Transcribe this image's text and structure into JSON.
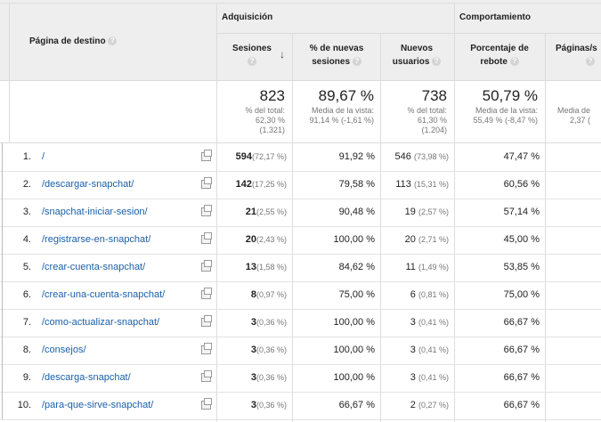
{
  "header": {
    "landing_page_label": "Página de destino",
    "group_acquisition": "Adquisición",
    "group_behavior": "Comportamiento",
    "columns": {
      "sessions": "Sesiones",
      "new_sessions_pct": "% de nuevas sesiones",
      "new_users": "Nuevos usuarios",
      "bounce_rate": "Porcentaje de rebote",
      "pages_session": "Páginas/s"
    }
  },
  "totals": {
    "sessions": {
      "main": "823",
      "line1": "% del total:",
      "line2": "62,30 %",
      "line3": "(1.321)"
    },
    "new_sessions_pct": {
      "main": "89,67 %",
      "line1": "Media de la vista:",
      "line2": "91,14 % (-1,61 %)"
    },
    "new_users": {
      "main": "738",
      "line1": "% del total:",
      "line2": "61,30 %",
      "line3": "(1.204)"
    },
    "bounce_rate": {
      "main": "50,79 %",
      "line1": "Media de la vista:",
      "line2": "55,49 % (-8,47 %)"
    },
    "pages_session": {
      "line1": "Media de",
      "line2": "2,37 ("
    }
  },
  "rows": [
    {
      "rank": "1.",
      "page": "/",
      "sessions": "594",
      "sessions_pct": "(72,17 %)",
      "new_sessions": "91,92 %",
      "new_users": "546",
      "new_users_pct": "(73,98 %)",
      "bounce": "47,47 %"
    },
    {
      "rank": "2.",
      "page": "/descargar-snapchat/",
      "sessions": "142",
      "sessions_pct": "(17,25 %)",
      "new_sessions": "79,58 %",
      "new_users": "113",
      "new_users_pct": "(15,31 %)",
      "bounce": "60,56 %"
    },
    {
      "rank": "3.",
      "page": "/snapchat-iniciar-sesion/",
      "sessions": "21",
      "sessions_pct": "(2,55 %)",
      "new_sessions": "90,48 %",
      "new_users": "19",
      "new_users_pct": "(2,57 %)",
      "bounce": "57,14 %"
    },
    {
      "rank": "4.",
      "page": "/registrarse-en-snapchat/",
      "sessions": "20",
      "sessions_pct": "(2,43 %)",
      "new_sessions": "100,00 %",
      "new_users": "20",
      "new_users_pct": "(2,71 %)",
      "bounce": "45,00 %"
    },
    {
      "rank": "5.",
      "page": "/crear-cuenta-snapchat/",
      "sessions": "13",
      "sessions_pct": "(1,58 %)",
      "new_sessions": "84,62 %",
      "new_users": "11",
      "new_users_pct": "(1,49 %)",
      "bounce": "53,85 %"
    },
    {
      "rank": "6.",
      "page": "/crear-una-cuenta-snapchat/",
      "sessions": "8",
      "sessions_pct": "(0,97 %)",
      "new_sessions": "75,00 %",
      "new_users": "6",
      "new_users_pct": "(0,81 %)",
      "bounce": "75,00 %"
    },
    {
      "rank": "7.",
      "page": "/como-actualizar-snapchat/",
      "sessions": "3",
      "sessions_pct": "(0,36 %)",
      "new_sessions": "100,00 %",
      "new_users": "3",
      "new_users_pct": "(0,41 %)",
      "bounce": "66,67 %"
    },
    {
      "rank": "8.",
      "page": "/consejos/",
      "sessions": "3",
      "sessions_pct": "(0,36 %)",
      "new_sessions": "100,00 %",
      "new_users": "3",
      "new_users_pct": "(0,41 %)",
      "bounce": "66,67 %"
    },
    {
      "rank": "9.",
      "page": "/descarga-snapchat/",
      "sessions": "3",
      "sessions_pct": "(0,36 %)",
      "new_sessions": "100,00 %",
      "new_users": "3",
      "new_users_pct": "(0,41 %)",
      "bounce": "66,67 %"
    },
    {
      "rank": "10.",
      "page": "/para-que-sirve-snapchat/",
      "sessions": "3",
      "sessions_pct": "(0,36 %)",
      "new_sessions": "66,67 %",
      "new_users": "2",
      "new_users_pct": "(0,27 %)",
      "bounce": "66,67 %"
    }
  ],
  "icons": {
    "help": "help-icon",
    "sort": "sort-desc-arrow-icon",
    "open_page": "open-page-icon"
  }
}
